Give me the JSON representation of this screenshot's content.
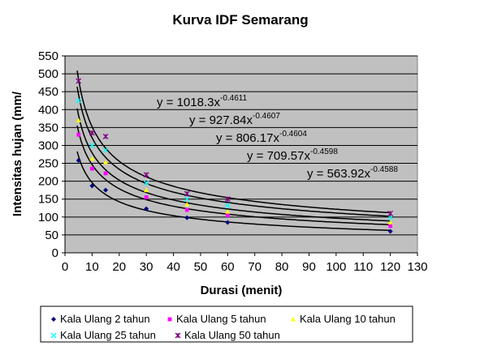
{
  "chart_data": {
    "type": "scatter",
    "title": "Kurva IDF Semarang",
    "xlabel": "Durasi (menit)",
    "ylabel": "Intensitas hujan (mm/",
    "xlim": [
      0,
      130
    ],
    "ylim": [
      0,
      550
    ],
    "x_ticks": [
      "0",
      "10",
      "20",
      "30",
      "40",
      "50",
      "60",
      "70",
      "80",
      "90",
      "100",
      "110",
      "120",
      "130"
    ],
    "y_ticks": [
      "0",
      "50",
      "100",
      "150",
      "200",
      "250",
      "300",
      "350",
      "400",
      "450",
      "500",
      "550"
    ],
    "x_tick_values": [
      0,
      10,
      20,
      30,
      40,
      50,
      60,
      70,
      80,
      90,
      100,
      110,
      120,
      130
    ],
    "y_tick_values": [
      0,
      50,
      100,
      150,
      200,
      250,
      300,
      350,
      400,
      450,
      500,
      550
    ],
    "grid": "horizontal",
    "legend_position": "bottom",
    "x": [
      5,
      10,
      15,
      30,
      45,
      60,
      120
    ],
    "series": [
      {
        "name": "Kala Ulang 2 tahun",
        "marker": "diamond",
        "color": "#00007f",
        "values": [
          258,
          187,
          175,
          123,
          98,
          85,
          60
        ],
        "fit": {
          "a": 563.92,
          "b": -0.4588,
          "label": "y = 563.92x",
          "exp": "-0.4588"
        }
      },
      {
        "name": "Kala Ulang 5 tahun",
        "marker": "square",
        "color": "#ff00ff",
        "values": [
          330,
          235,
          222,
          155,
          120,
          105,
          75
        ],
        "fit": {
          "a": 709.57,
          "b": -0.4598,
          "label": "y = 709.57x",
          "exp": "-0.4598"
        }
      },
      {
        "name": "Kala Ulang 10 tahun",
        "marker": "triangle",
        "color": "#ffff00",
        "values": [
          370,
          263,
          253,
          175,
          135,
          115,
          85
        ],
        "fit": {
          "a": 806.17,
          "b": -0.4604,
          "label": "y = 806.17x",
          "exp": "-0.4604"
        }
      },
      {
        "name": "Kala Ulang 25 tahun",
        "marker": "x",
        "color": "#00ffff",
        "values": [
          425,
          300,
          287,
          195,
          150,
          132,
          98
        ],
        "fit": {
          "a": 927.84,
          "b": -0.4607,
          "label": "y = 927.84x",
          "exp": "-0.4607"
        }
      },
      {
        "name": "Kala Ulang 50 tahun",
        "marker": "star",
        "color": "#7f007f",
        "values": [
          480,
          335,
          325,
          218,
          165,
          150,
          110
        ],
        "fit": {
          "a": 1018.3,
          "b": -0.4611,
          "label": "y = 1018.3x",
          "exp": "-0.4611"
        }
      }
    ]
  }
}
